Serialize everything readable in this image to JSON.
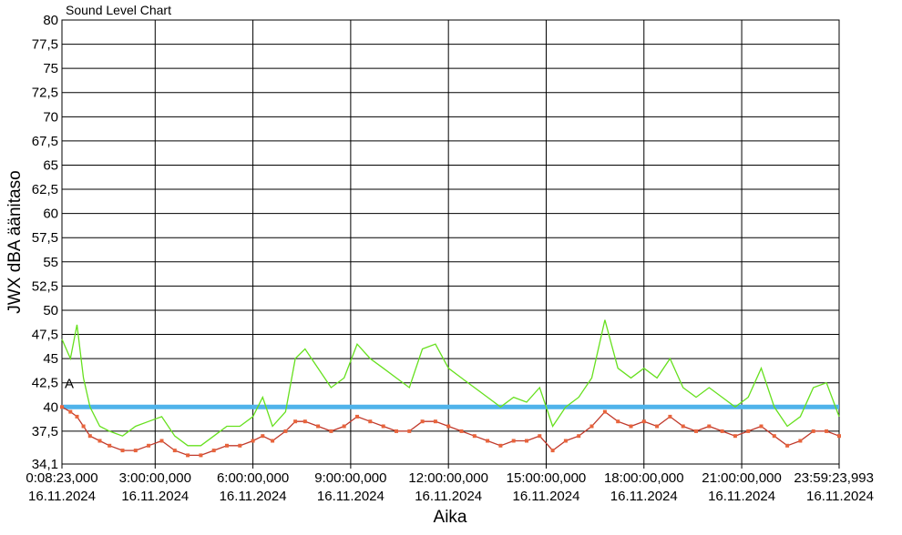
{
  "chart_data": {
    "type": "line",
    "title": "Sound Level Chart",
    "xlabel": "Aika",
    "ylabel": "JWX dBA äänitaso",
    "x_unit": "hours since 0:00 16.11.2024",
    "xlim": [
      0.1397,
      23.99
    ],
    "ylim": [
      34.1,
      80
    ],
    "y_ticks": [
      "80",
      "77,5",
      "75",
      "72,5",
      "70",
      "67,5",
      "65",
      "62,5",
      "60",
      "57,5",
      "55",
      "52,5",
      "50",
      "47,5",
      "45",
      "42,5",
      "40",
      "37,5",
      "34,1"
    ],
    "x_ticks": [
      {
        "time": "0:08:23,000",
        "date": "16.11.2024"
      },
      {
        "time": "3:00:00,000",
        "date": "16.11.2024"
      },
      {
        "time": "6:00:00,000",
        "date": "16.11.2024"
      },
      {
        "time": "9:00:00,000",
        "date": "16.11.2024"
      },
      {
        "time": "12:00:00,000",
        "date": "16.11.2024"
      },
      {
        "time": "15:00:00,000",
        "date": "16.11.2024"
      },
      {
        "time": "18:00:00,000",
        "date": "16.11.2024"
      },
      {
        "time": "21:00:00,000",
        "date": "16.11.2024"
      },
      {
        "time": "23:59:23,993",
        "date": "16.11.2024"
      }
    ],
    "grid": true,
    "threshold": {
      "value": 40,
      "color": "#4fb3ea"
    },
    "marker": {
      "label": "A",
      "x": 0.1397,
      "y": 42.5
    },
    "series": [
      {
        "kind": "max-line",
        "color": "#66e01e",
        "x": [
          0.14,
          0.4,
          0.6,
          0.8,
          1.0,
          1.3,
          1.6,
          2.0,
          2.4,
          2.8,
          3.2,
          3.6,
          4.0,
          4.4,
          4.8,
          5.2,
          5.6,
          6.0,
          6.3,
          6.6,
          7.0,
          7.3,
          7.6,
          8.0,
          8.4,
          8.8,
          9.2,
          9.6,
          10.0,
          10.4,
          10.8,
          11.2,
          11.6,
          12.0,
          12.4,
          12.8,
          13.2,
          13.6,
          14.0,
          14.4,
          14.8,
          15.2,
          15.6,
          16.0,
          16.4,
          16.8,
          17.2,
          17.6,
          18.0,
          18.4,
          18.8,
          19.2,
          19.6,
          20.0,
          20.4,
          20.8,
          21.2,
          21.6,
          22.0,
          22.4,
          22.8,
          23.2,
          23.6,
          23.99
        ],
        "y": [
          47,
          45,
          48.5,
          43,
          40,
          38,
          37.5,
          37,
          38,
          38.5,
          39,
          37,
          36,
          36,
          37,
          38,
          38,
          39,
          41,
          38,
          39.5,
          45,
          46,
          44,
          42,
          43,
          46.5,
          45,
          44,
          43,
          42,
          46,
          46.5,
          44,
          43,
          42,
          41,
          40,
          41,
          40.5,
          42,
          38,
          40,
          41,
          43,
          49,
          44,
          43,
          44,
          43,
          45,
          42,
          41,
          42,
          41,
          40,
          41,
          44,
          40,
          38,
          39,
          42,
          42.5,
          39
        ]
      },
      {
        "kind": "mean-line",
        "color": "#c0392b",
        "x": [
          0.14,
          0.4,
          0.6,
          0.8,
          1.0,
          1.3,
          1.6,
          2.0,
          2.4,
          2.8,
          3.2,
          3.6,
          4.0,
          4.4,
          4.8,
          5.2,
          5.6,
          6.0,
          6.3,
          6.6,
          7.0,
          7.3,
          7.6,
          8.0,
          8.4,
          8.8,
          9.2,
          9.6,
          10.0,
          10.4,
          10.8,
          11.2,
          11.6,
          12.0,
          12.4,
          12.8,
          13.2,
          13.6,
          14.0,
          14.4,
          14.8,
          15.2,
          15.6,
          16.0,
          16.4,
          16.8,
          17.2,
          17.6,
          18.0,
          18.4,
          18.8,
          19.2,
          19.6,
          20.0,
          20.4,
          20.8,
          21.2,
          21.6,
          22.0,
          22.4,
          22.8,
          23.2,
          23.6,
          23.99
        ],
        "y": [
          40,
          39.5,
          39,
          38,
          37,
          36.5,
          36,
          35.5,
          35.5,
          36,
          36.5,
          35.5,
          35,
          35,
          35.5,
          36,
          36,
          36.5,
          37,
          36.5,
          37.5,
          38.5,
          38.5,
          38,
          37.5,
          38,
          39,
          38.5,
          38,
          37.5,
          37.5,
          38.5,
          38.5,
          38,
          37.5,
          37,
          36.5,
          36,
          36.5,
          36.5,
          37,
          35.5,
          36.5,
          37,
          38,
          39.5,
          38.5,
          38,
          38.5,
          38,
          39,
          38,
          37.5,
          38,
          37.5,
          37,
          37.5,
          38,
          37,
          36,
          36.5,
          37.5,
          37.5,
          37
        ]
      }
    ]
  }
}
